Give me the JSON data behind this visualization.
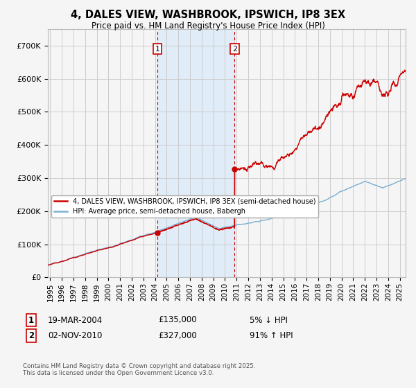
{
  "title": "4, DALES VIEW, WASHBROOK, IPSWICH, IP8 3EX",
  "subtitle": "Price paid vs. HM Land Registry's House Price Index (HPI)",
  "sale1_label": "19-MAR-2004",
  "sale1_price": 135000,
  "sale1_pct": "5% ↓ HPI",
  "sale2_label": "02-NOV-2010",
  "sale2_price": 327000,
  "sale2_pct": "91% ↑ HPI",
  "hpi_line_color": "#7aafd4",
  "price_line_color": "#cc0000",
  "annotation_box_color": "#cc0000",
  "shaded_region_color": "#e0ecf8",
  "background_color": "#f5f5f5",
  "grid_color": "#cccccc",
  "ylim": [
    0,
    750000
  ],
  "yticks": [
    0,
    100000,
    200000,
    300000,
    400000,
    500000,
    600000,
    700000
  ],
  "xlim_start": 1994.8,
  "xlim_end": 2025.5,
  "footer": "Contains HM Land Registry data © Crown copyright and database right 2025.\nThis data is licensed under the Open Government Licence v3.0.",
  "sale1_year": 2004.208,
  "sale2_year": 2010.833
}
